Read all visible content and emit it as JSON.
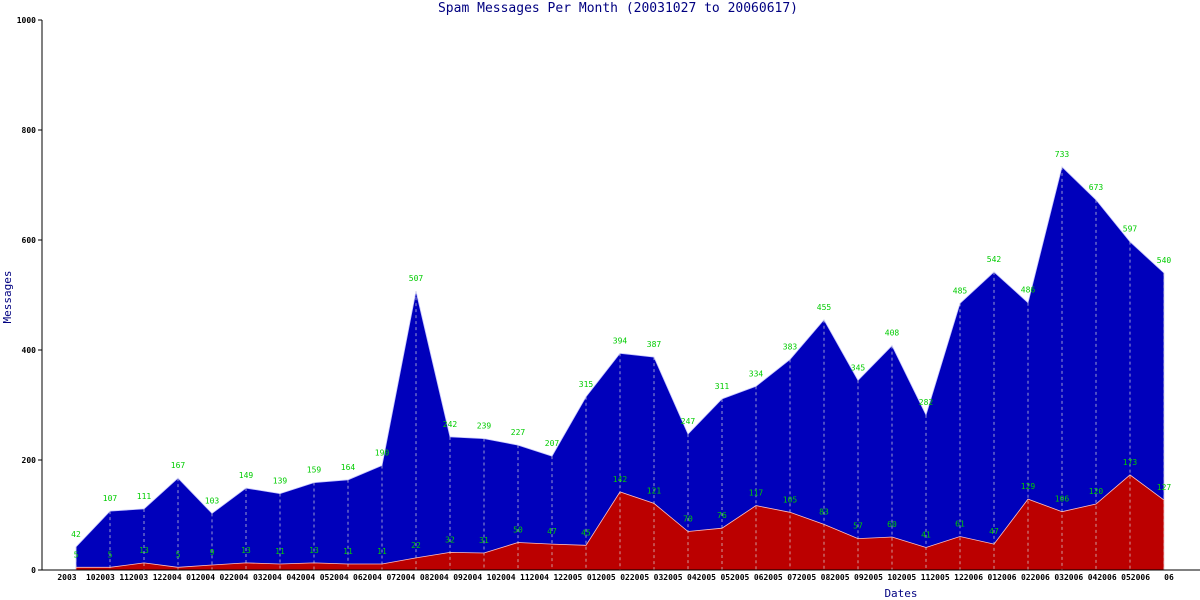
{
  "chart_data": {
    "type": "area",
    "title": "Spam Messages Per Month (20031027 to 20060617)",
    "xlabel": "Dates",
    "ylabel": "Messages",
    "ylim": [
      0,
      1000
    ],
    "yticks": [
      0,
      200,
      400,
      600,
      800,
      1000
    ],
    "grid": false,
    "x_tick_labels": [
      "2003",
      "102003",
      "112003",
      "122004",
      "012004",
      "022004",
      "032004",
      "042004",
      "052004",
      "062004",
      "072004",
      "082004",
      "092004",
      "102004",
      "112004",
      "122005",
      "012005",
      "022005",
      "032005",
      "042005",
      "052005",
      "062005",
      "072005",
      "082005",
      "092005",
      "102005",
      "112005",
      "122006",
      "012006",
      "022006",
      "032006",
      "042006",
      "052006",
      "06"
    ],
    "series": [
      {
        "color": "#0000bb",
        "values": [
          42,
          107,
          111,
          167,
          103,
          149,
          139,
          159,
          164,
          190,
          507,
          242,
          239,
          227,
          207,
          315,
          394,
          387,
          247,
          311,
          334,
          383,
          455,
          345,
          408,
          282,
          485,
          542,
          486,
          733,
          673,
          597,
          540
        ]
      },
      {
        "color": "#bb0000",
        "values": [
          5,
          5,
          13,
          5,
          9,
          13,
          11,
          13,
          11,
          11,
          22,
          32,
          31,
          50,
          47,
          45,
          142,
          121,
          70,
          76,
          117,
          105,
          83,
          57,
          60,
          41,
          61,
          47,
          129,
          106,
          120,
          173,
          127
        ]
      }
    ],
    "data_label_color": "#00cc00"
  }
}
